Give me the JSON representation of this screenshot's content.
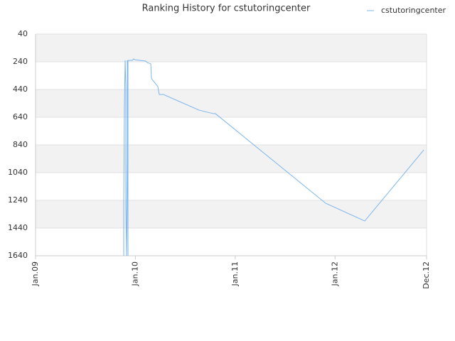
{
  "chart_data": {
    "type": "line",
    "title": "Ranking History for cstutoringcenter",
    "x": [
      10.6,
      10.6,
      10.68,
      10.77,
      10.85,
      10.85,
      10.94,
      11.03,
      11.03,
      11.11,
      11.11,
      11.62,
      11.79,
      11.97,
      13.25,
      13.42,
      13.85,
      13.93,
      14.02,
      14.7,
      14.87,
      15.38,
      19.66,
      21.37,
      21.62,
      34.87,
      39.57,
      46.67
    ],
    "series": [
      {
        "name": "cstutoringcenter",
        "color": "#7cb5ec",
        "values": [
          1640,
          1281,
          563,
          230,
          409,
          1281,
          1640,
          922,
          230,
          1640,
          230,
          230,
          219,
          225,
          235,
          245,
          255,
          358,
          368,
          419,
          476,
          476,
          589,
          614,
          614,
          1261,
          1389,
          876
        ]
      }
    ],
    "xlim": [
      0,
      47
    ],
    "xticks": [
      {
        "value": 0,
        "label": "Jan.09"
      },
      {
        "value": 12,
        "label": "Jan.10"
      },
      {
        "value": 24,
        "label": "Jan.11"
      },
      {
        "value": 36,
        "label": "Jan.12"
      },
      {
        "value": 47,
        "label": "Dec.12"
      }
    ],
    "ylim": [
      40,
      1640
    ],
    "y_inverted": true,
    "yticks": [
      40,
      240,
      440,
      640,
      840,
      1040,
      1240,
      1440,
      1640
    ],
    "grid": true,
    "legend": "top-right"
  }
}
